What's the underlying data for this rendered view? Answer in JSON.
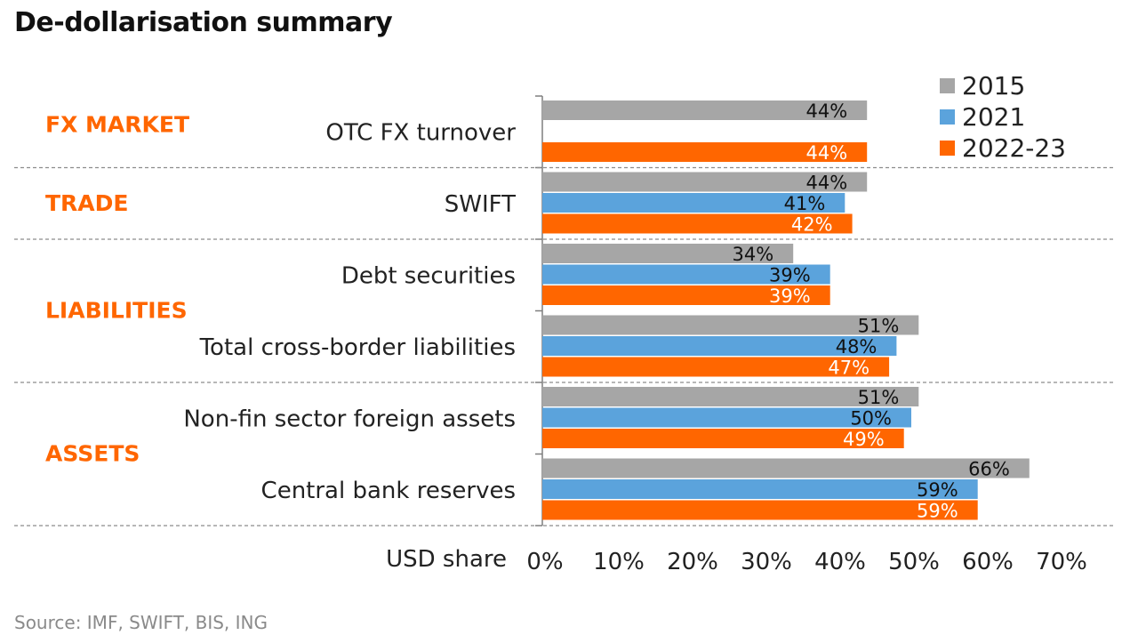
{
  "page": {
    "title": "De-dollarisation summary",
    "source": "Source: IMF, SWIFT, BIS, ING"
  },
  "chart_data": {
    "type": "bar",
    "orientation": "horizontal",
    "title": "De-dollarisation summary",
    "xlabel": "USD share",
    "xlim": [
      0,
      70
    ],
    "x_ticks": [
      "0%",
      "10%",
      "20%",
      "30%",
      "40%",
      "50%",
      "60%",
      "70%"
    ],
    "legend": {
      "placement": "top-right",
      "entries": [
        "2015",
        "2021",
        "2022-23"
      ]
    },
    "colors": {
      "2015": "#a6a6a6",
      "2021": "#5ba3dc",
      "2022-23": "#ff6600",
      "group_label": "#ff6600"
    },
    "groups": [
      {
        "label": "FX MARKET",
        "categories": [
          "OTC FX turnover"
        ]
      },
      {
        "label": "TRADE",
        "categories": [
          "SWIFT"
        ]
      },
      {
        "label": "LIABILITIES",
        "categories": [
          "Debt securities",
          "Total cross-border liabilities"
        ]
      },
      {
        "label": "ASSETS",
        "categories": [
          "Non-fin sector foreign assets",
          "Central bank reserves"
        ]
      }
    ],
    "categories": [
      "OTC FX turnover",
      "SWIFT",
      "Debt securities",
      "Total cross-border liabilities",
      "Non-fin sector foreign assets",
      "Central bank reserves"
    ],
    "series": [
      {
        "name": "2015",
        "values": [
          44,
          44,
          34,
          51,
          51,
          66
        ]
      },
      {
        "name": "2021",
        "values": [
          null,
          41,
          39,
          48,
          50,
          59
        ]
      },
      {
        "name": "2022-23",
        "values": [
          44,
          42,
          39,
          47,
          49,
          59
        ]
      }
    ]
  }
}
